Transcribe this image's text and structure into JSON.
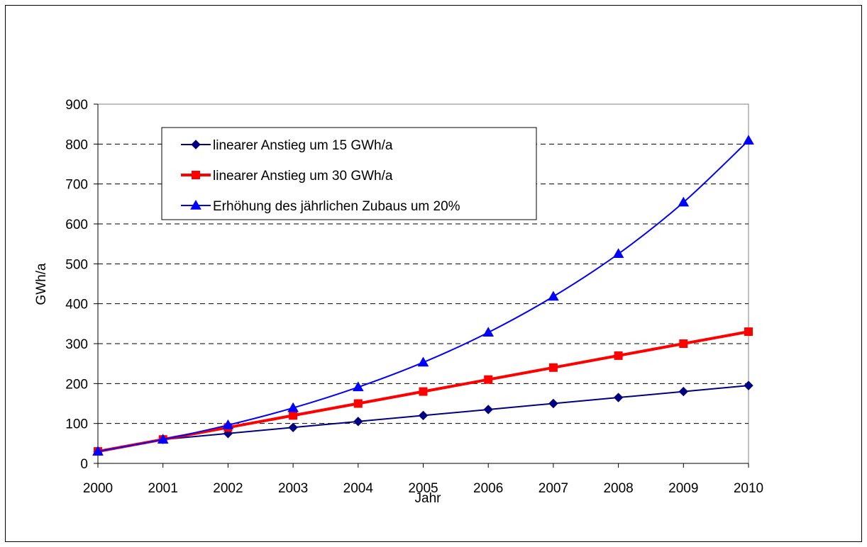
{
  "chart_data": {
    "type": "line",
    "title": "",
    "xlabel": "Jahr",
    "ylabel": "GWh/a",
    "x": [
      "2000",
      "2001",
      "2002",
      "2003",
      "2004",
      "2005",
      "2006",
      "2007",
      "2008",
      "2009",
      "2010"
    ],
    "ylim": [
      0,
      900
    ],
    "yticks": [
      0,
      100,
      200,
      300,
      400,
      500,
      600,
      700,
      800,
      900
    ],
    "grid": "horizontal dashed",
    "legend_position": "top-left",
    "series": [
      {
        "name": "linearer Anstieg um 15 GWh/a",
        "color": "#000080",
        "marker": "diamond",
        "values": [
          30,
          60,
          75,
          90,
          105,
          120,
          135,
          150,
          165,
          180,
          195
        ]
      },
      {
        "name": "linearer Anstieg um 30 GWh/a",
        "color": "#ff0000",
        "marker": "square",
        "values": [
          30,
          60,
          90,
          120,
          150,
          180,
          210,
          240,
          270,
          300,
          330
        ]
      },
      {
        "name": "Erhöhung des jährlichen Zubaus um 20%",
        "color": "#0000ff",
        "marker": "triangle",
        "values": [
          30,
          60,
          96,
          139,
          191,
          253,
          328,
          418,
          525,
          654,
          809
        ]
      }
    ]
  }
}
